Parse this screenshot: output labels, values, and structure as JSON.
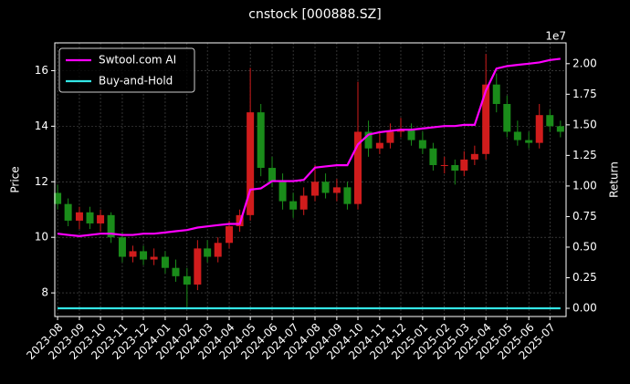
{
  "chart_data": {
    "type": "candlestick",
    "title": "cnstock [000888.SZ]",
    "ylabel": "Price",
    "y2label": "Return",
    "y2_offset_label": "1e7",
    "x": [
      "2023-08-01",
      "2023-08-16",
      "2023-09-01",
      "2023-09-16",
      "2023-10-01",
      "2023-10-16",
      "2023-11-01",
      "2023-11-16",
      "2023-12-01",
      "2023-12-16",
      "2024-01-01",
      "2024-01-16",
      "2024-02-01",
      "2024-02-16",
      "2024-03-01",
      "2024-03-16",
      "2024-04-01",
      "2024-04-16",
      "2024-05-01",
      "2024-05-16",
      "2024-06-01",
      "2024-06-16",
      "2024-07-01",
      "2024-07-16",
      "2024-08-01",
      "2024-08-16",
      "2024-09-01",
      "2024-09-16",
      "2024-10-01",
      "2024-10-16",
      "2024-11-01",
      "2024-11-16",
      "2024-12-01",
      "2024-12-16",
      "2025-01-01",
      "2025-01-16",
      "2025-02-01",
      "2025-02-16",
      "2025-03-01",
      "2025-03-16",
      "2025-04-01",
      "2025-04-16",
      "2025-05-01",
      "2025-05-16",
      "2025-06-01",
      "2025-06-16",
      "2025-07-01",
      "2025-07-16"
    ],
    "open": [
      11.6,
      11.2,
      10.6,
      10.9,
      10.5,
      10.8,
      10.0,
      9.3,
      9.5,
      9.2,
      9.3,
      8.9,
      8.6,
      8.3,
      9.6,
      9.3,
      9.8,
      10.4,
      10.8,
      14.5,
      12.5,
      12.0,
      11.3,
      11.0,
      11.5,
      12.0,
      11.6,
      11.8,
      11.2,
      13.8,
      13.2,
      13.4,
      13.8,
      13.9,
      13.5,
      13.2,
      12.6,
      12.6,
      12.4,
      12.8,
      13.0,
      15.5,
      14.8,
      13.8,
      13.5,
      13.4,
      14.4,
      14.0
    ],
    "high": [
      11.9,
      11.4,
      11.1,
      11.1,
      11.0,
      10.9,
      10.2,
      9.7,
      9.7,
      9.6,
      9.5,
      9.2,
      8.9,
      9.9,
      9.9,
      10.0,
      10.6,
      11.0,
      16.1,
      14.8,
      12.9,
      12.3,
      11.6,
      11.8,
      12.6,
      12.3,
      12.1,
      12.0,
      15.6,
      14.2,
      13.8,
      14.1,
      14.3,
      14.1,
      13.8,
      13.4,
      12.9,
      12.8,
      13.1,
      13.3,
      16.6,
      15.9,
      15.1,
      14.2,
      13.8,
      14.8,
      14.6,
      14.2
    ],
    "low": [
      11.0,
      10.4,
      10.3,
      10.3,
      10.2,
      9.8,
      9.1,
      9.1,
      9.0,
      9.0,
      8.7,
      8.4,
      7.5,
      8.1,
      9.1,
      9.1,
      9.6,
      10.2,
      10.6,
      12.2,
      11.8,
      11.0,
      10.7,
      10.8,
      11.3,
      11.4,
      11.3,
      11.0,
      11.0,
      12.9,
      13.0,
      13.2,
      13.6,
      13.3,
      13.0,
      12.4,
      12.3,
      11.9,
      12.2,
      12.6,
      12.8,
      14.5,
      13.6,
      13.3,
      13.2,
      13.2,
      13.8,
      13.6
    ],
    "close": [
      11.2,
      10.6,
      10.9,
      10.5,
      10.8,
      10.0,
      9.3,
      9.5,
      9.2,
      9.3,
      8.9,
      8.6,
      8.3,
      9.6,
      9.3,
      9.8,
      10.4,
      10.8,
      14.5,
      12.5,
      12.0,
      11.3,
      11.0,
      11.5,
      12.0,
      11.6,
      11.8,
      11.2,
      13.8,
      13.2,
      13.4,
      13.8,
      13.9,
      13.5,
      13.2,
      12.6,
      12.6,
      12.4,
      12.8,
      13.0,
      15.5,
      14.8,
      13.8,
      13.5,
      13.4,
      14.4,
      14.0,
      13.8
    ],
    "up_color": "#d01c1c",
    "down_color": "#1a8c1a",
    "series": [
      {
        "name": "Swtool.com AI",
        "color": "#ff00ff",
        "axis": "y2",
        "values": [
          6100000,
          6000000,
          5900000,
          6000000,
          6100000,
          6100000,
          6000000,
          6000000,
          6100000,
          6100000,
          6200000,
          6300000,
          6400000,
          6600000,
          6700000,
          6800000,
          6900000,
          6900000,
          9700000,
          9800000,
          10400000,
          10400000,
          10400000,
          10500000,
          11500000,
          11600000,
          11700000,
          11700000,
          13400000,
          14200000,
          14400000,
          14500000,
          14600000,
          14600000,
          14700000,
          14800000,
          14900000,
          14900000,
          15000000,
          15000000,
          17800000,
          19600000,
          19800000,
          19900000,
          20000000,
          20100000,
          20300000,
          20400000
        ]
      },
      {
        "name": "Buy-and-Hold",
        "color": "#33e6e6",
        "axis": "y2",
        "values": [
          0,
          0,
          0,
          0,
          0,
          0,
          0,
          0,
          0,
          0,
          0,
          0,
          0,
          0,
          0,
          0,
          0,
          0,
          0,
          0,
          0,
          0,
          0,
          0,
          0,
          0,
          0,
          0,
          0,
          0,
          0,
          0,
          0,
          0,
          0,
          0,
          0,
          0,
          0,
          0,
          0,
          0,
          0,
          0,
          0,
          0,
          0,
          0
        ]
      }
    ],
    "xlim": [
      "2023-07-28",
      "2025-07-24"
    ],
    "xticks": [
      {
        "value": "2023-08-01",
        "label": "2023-08"
      },
      {
        "value": "2023-09-01",
        "label": "2023-09"
      },
      {
        "value": "2023-10-01",
        "label": "2023-10"
      },
      {
        "value": "2023-11-01",
        "label": "2023-11"
      },
      {
        "value": "2023-12-01",
        "label": "2023-12"
      },
      {
        "value": "2024-01-01",
        "label": "2024-01"
      },
      {
        "value": "2024-02-01",
        "label": "2024-02"
      },
      {
        "value": "2024-03-01",
        "label": "2024-03"
      },
      {
        "value": "2024-04-01",
        "label": "2024-04"
      },
      {
        "value": "2024-05-01",
        "label": "2024-05"
      },
      {
        "value": "2024-06-01",
        "label": "2024-06"
      },
      {
        "value": "2024-07-01",
        "label": "2024-07"
      },
      {
        "value": "2024-08-01",
        "label": "2024-08"
      },
      {
        "value": "2024-09-01",
        "label": "2024-09"
      },
      {
        "value": "2024-10-01",
        "label": "2024-10"
      },
      {
        "value": "2024-11-01",
        "label": "2024-11"
      },
      {
        "value": "2024-12-01",
        "label": "2024-12"
      },
      {
        "value": "2025-01-01",
        "label": "2025-01"
      },
      {
        "value": "2025-02-01",
        "label": "2025-02"
      },
      {
        "value": "2025-03-01",
        "label": "2025-03"
      },
      {
        "value": "2025-04-01",
        "label": "2025-04"
      },
      {
        "value": "2025-05-01",
        "label": "2025-05"
      },
      {
        "value": "2025-06-01",
        "label": "2025-06"
      },
      {
        "value": "2025-07-01",
        "label": "2025-07"
      }
    ],
    "ylim": [
      7.15,
      17.0
    ],
    "yticks": [
      8,
      10,
      12,
      14,
      16
    ],
    "y2lim": [
      -670000,
      21700000
    ],
    "y2ticks": [
      {
        "value": 0,
        "label": "0.00"
      },
      {
        "value": 2500000,
        "label": "0.25"
      },
      {
        "value": 5000000,
        "label": "0.50"
      },
      {
        "value": 7500000,
        "label": "0.75"
      },
      {
        "value": 10000000,
        "label": "1.00"
      },
      {
        "value": 12500000,
        "label": "1.25"
      },
      {
        "value": 15000000,
        "label": "1.50"
      },
      {
        "value": 17500000,
        "label": "1.75"
      },
      {
        "value": 20000000,
        "label": "2.00"
      }
    ],
    "grid": true,
    "legend": "upper left"
  }
}
